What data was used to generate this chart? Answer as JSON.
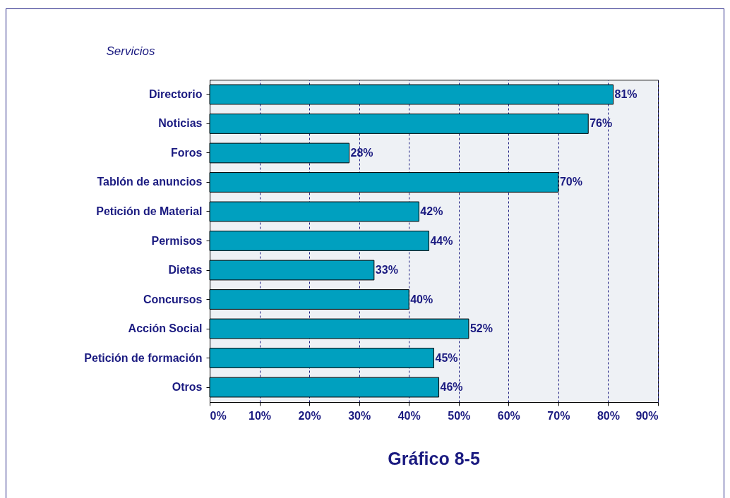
{
  "chart_data": {
    "type": "bar",
    "orientation": "horizontal",
    "title": "Gráfico 8-5",
    "ylabel": "Servicios",
    "categories": [
      "Directorio",
      "Noticias",
      "Foros",
      "Tablón de anuncios",
      "Petición de Material",
      "Permisos",
      "Dietas",
      "Concursos",
      "Acción Social",
      "Petición de formación",
      "Otros"
    ],
    "values": [
      81,
      76,
      28,
      70,
      42,
      44,
      33,
      40,
      52,
      45,
      46
    ],
    "value_labels": [
      "81%",
      "76%",
      "28%",
      "70%",
      "42%",
      "44%",
      "33%",
      "40%",
      "52%",
      "45%",
      "46%"
    ],
    "color": "#00a0bf",
    "xlim": [
      0,
      90
    ],
    "xticks": [
      {
        "value": 0,
        "label": "0%"
      },
      {
        "value": 10,
        "label": "10%"
      },
      {
        "value": 20,
        "label": "20%"
      },
      {
        "value": 30,
        "label": "30%"
      },
      {
        "value": 40,
        "label": "40%"
      },
      {
        "value": 50,
        "label": "50%"
      },
      {
        "value": 60,
        "label": "60%"
      },
      {
        "value": 70,
        "label": "70%"
      },
      {
        "value": 80,
        "label": "80%"
      },
      {
        "value": 90,
        "label": "90%"
      }
    ],
    "grid": "x"
  }
}
